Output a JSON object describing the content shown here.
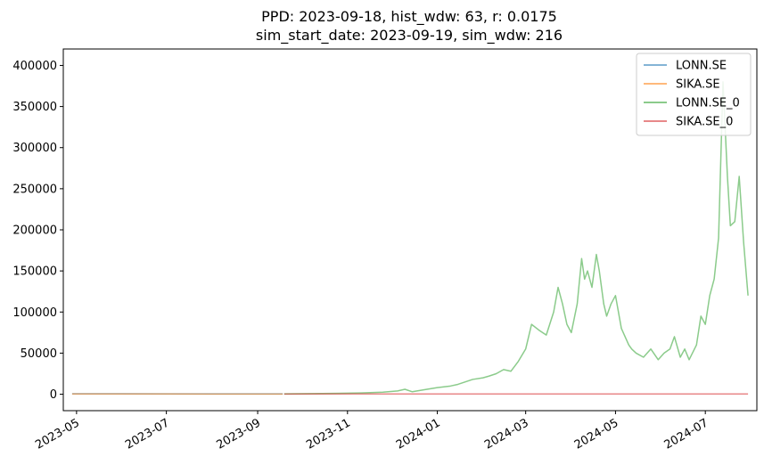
{
  "chart_data": {
    "type": "line",
    "title_line1": "PPD: 2023-09-18, hist_wdw: 63, r: 0.0175",
    "title_line2": "sim_start_date: 2023-09-19, sim_wdw: 216",
    "xlabel": "",
    "ylabel": "",
    "xlim": [
      "2023-04-22",
      "2024-08-05"
    ],
    "ylim": [
      -20000,
      420000
    ],
    "x_ticks": [
      "2023-05",
      "2023-07",
      "2023-09",
      "2023-11",
      "2024-01",
      "2024-03",
      "2024-05",
      "2024-07"
    ],
    "y_ticks": [
      0,
      50000,
      100000,
      150000,
      200000,
      250000,
      300000,
      350000,
      400000
    ],
    "legend_position": "top-right",
    "grid": false,
    "series": [
      {
        "name": "LONN.SE",
        "color": "#1f77b4",
        "x": [
          "2023-04-28",
          "2023-06-01",
          "2023-07-01",
          "2023-08-01",
          "2023-09-18"
        ],
        "y": [
          600,
          550,
          520,
          480,
          430
        ]
      },
      {
        "name": "SIKA.SE",
        "color": "#ff7f0e",
        "x": [
          "2023-04-28",
          "2023-06-01",
          "2023-07-01",
          "2023-08-01",
          "2023-09-18"
        ],
        "y": [
          280,
          270,
          250,
          240,
          230
        ]
      },
      {
        "name": "LONN.SE_0",
        "color": "#2ca02c",
        "x": [
          "2023-09-19",
          "2023-10-15",
          "2023-11-10",
          "2023-11-25",
          "2023-12-05",
          "2023-12-10",
          "2023-12-15",
          "2023-12-20",
          "2023-12-25",
          "2024-01-01",
          "2024-01-10",
          "2024-01-15",
          "2024-01-20",
          "2024-01-25",
          "2024-02-01",
          "2024-02-05",
          "2024-02-10",
          "2024-02-15",
          "2024-02-20",
          "2024-02-25",
          "2024-03-01",
          "2024-03-05",
          "2024-03-10",
          "2024-03-15",
          "2024-03-20",
          "2024-03-23",
          "2024-03-26",
          "2024-03-29",
          "2024-04-01",
          "2024-04-05",
          "2024-04-08",
          "2024-04-10",
          "2024-04-12",
          "2024-04-15",
          "2024-04-18",
          "2024-04-20",
          "2024-04-23",
          "2024-04-25",
          "2024-04-28",
          "2024-05-01",
          "2024-05-05",
          "2024-05-10",
          "2024-05-12",
          "2024-05-15",
          "2024-05-20",
          "2024-05-25",
          "2024-05-30",
          "2024-06-03",
          "2024-06-07",
          "2024-06-10",
          "2024-06-14",
          "2024-06-17",
          "2024-06-20",
          "2024-06-25",
          "2024-06-28",
          "2024-07-01",
          "2024-07-04",
          "2024-07-07",
          "2024-07-10",
          "2024-07-13",
          "2024-07-16",
          "2024-07-18",
          "2024-07-21",
          "2024-07-24",
          "2024-07-27",
          "2024-07-30"
        ],
        "y": [
          430,
          800,
          1500,
          2500,
          4000,
          6000,
          3000,
          4500,
          6000,
          8000,
          10000,
          12000,
          15000,
          18000,
          20000,
          22000,
          25000,
          30000,
          28000,
          40000,
          55000,
          85000,
          78000,
          72000,
          100000,
          130000,
          110000,
          85000,
          75000,
          110000,
          165000,
          140000,
          150000,
          130000,
          170000,
          150000,
          110000,
          95000,
          110000,
          120000,
          80000,
          60000,
          55000,
          50000,
          45000,
          55000,
          42000,
          50000,
          55000,
          70000,
          45000,
          55000,
          42000,
          60000,
          95000,
          85000,
          120000,
          140000,
          190000,
          380000,
          265000,
          205000,
          210000,
          265000,
          185000,
          120000
        ]
      },
      {
        "name": "SIKA.SE_0",
        "color": "#d62728",
        "x": [
          "2023-09-19",
          "2023-10-15",
          "2023-11-10",
          "2023-12-15",
          "2024-02-01",
          "2024-04-01",
          "2024-06-01",
          "2024-07-30"
        ],
        "y": [
          230,
          300,
          320,
          300,
          290,
          280,
          270,
          260
        ]
      }
    ]
  }
}
